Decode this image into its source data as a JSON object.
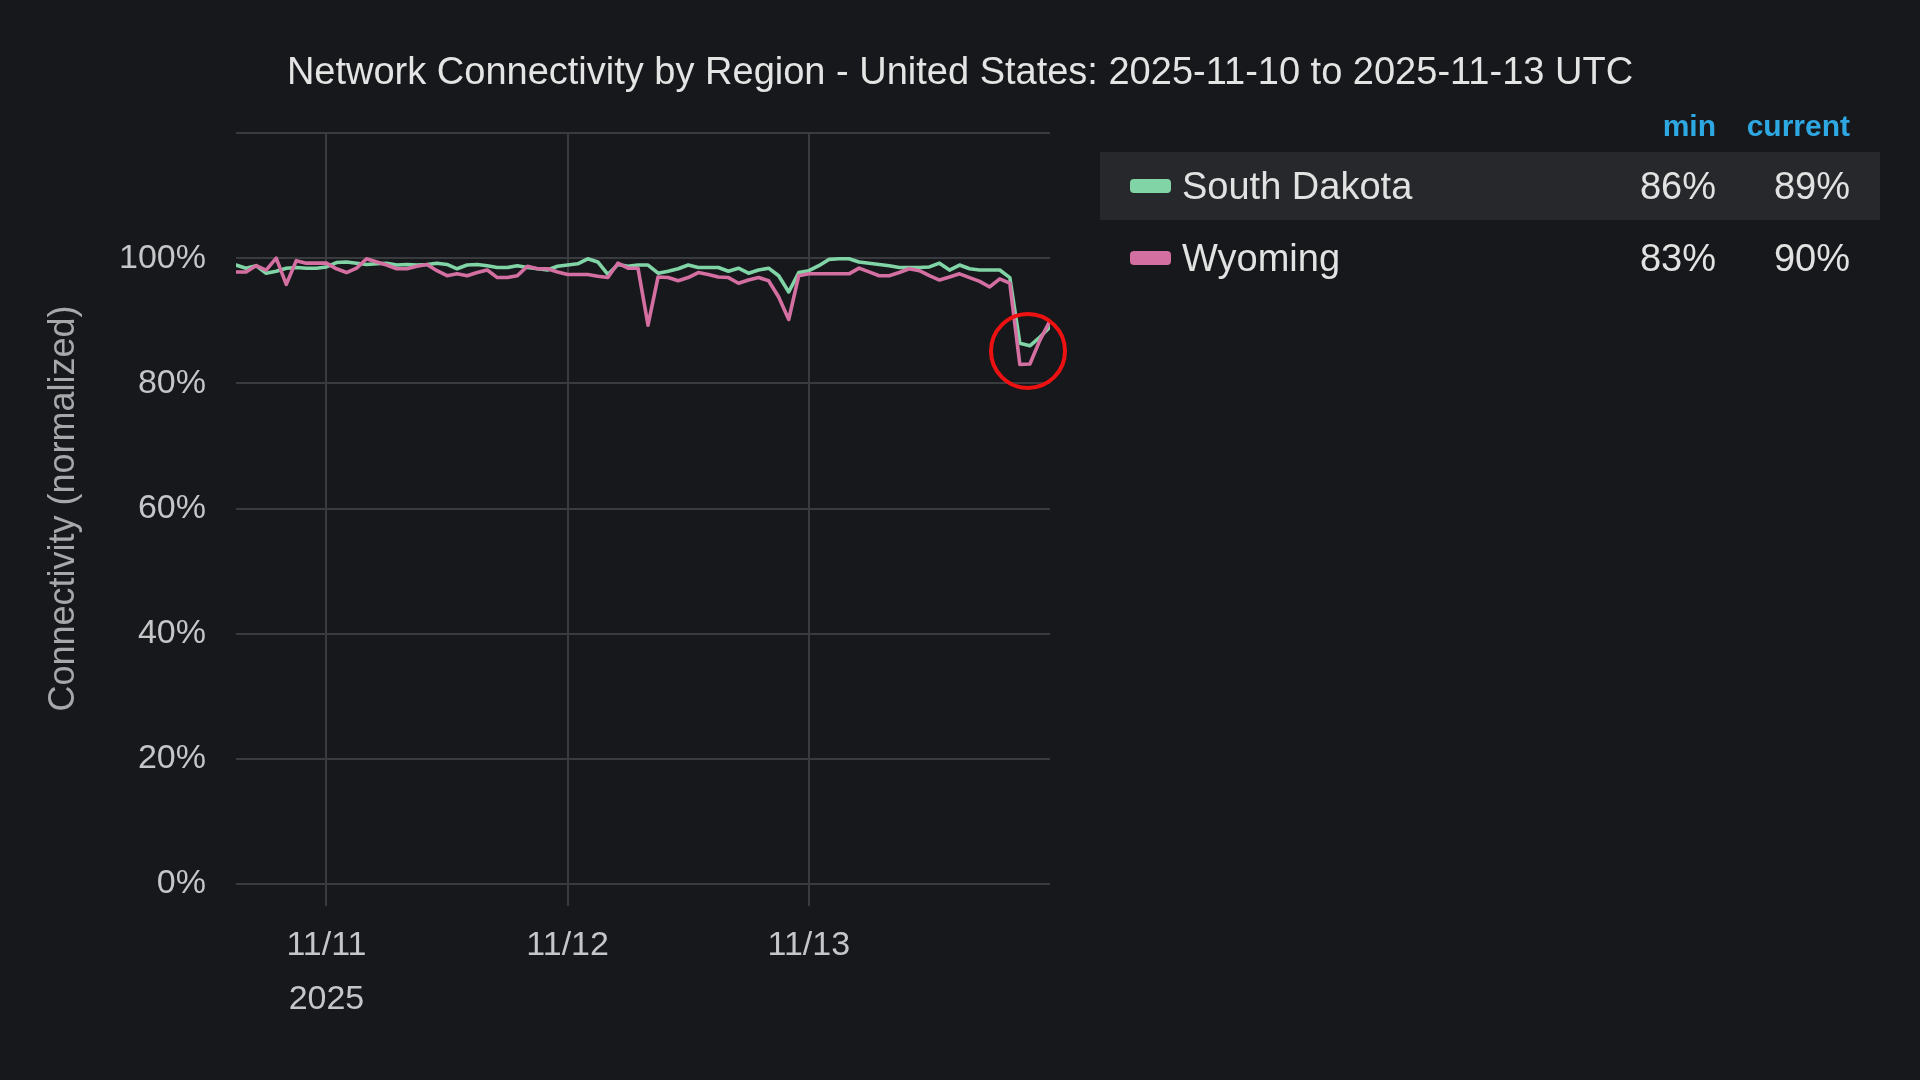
{
  "chart_data": {
    "type": "line",
    "title": "Network Connectivity by Region - United States: 2025-11-10 to 2025-11-13 UTC",
    "ylabel": "Connectivity (normalized)",
    "x": [
      "2025-11-10T15:00",
      "2025-11-10T16:00",
      "2025-11-10T17:00",
      "2025-11-10T18:00",
      "2025-11-10T19:00",
      "2025-11-10T20:00",
      "2025-11-10T21:00",
      "2025-11-10T22:00",
      "2025-11-10T23:00",
      "2025-11-11T00:00",
      "2025-11-11T01:00",
      "2025-11-11T02:00",
      "2025-11-11T03:00",
      "2025-11-11T04:00",
      "2025-11-11T05:00",
      "2025-11-11T06:00",
      "2025-11-11T07:00",
      "2025-11-11T08:00",
      "2025-11-11T09:00",
      "2025-11-11T10:00",
      "2025-11-11T11:00",
      "2025-11-11T12:00",
      "2025-11-11T13:00",
      "2025-11-11T14:00",
      "2025-11-11T15:00",
      "2025-11-11T16:00",
      "2025-11-11T17:00",
      "2025-11-11T18:00",
      "2025-11-11T19:00",
      "2025-11-11T20:00",
      "2025-11-11T21:00",
      "2025-11-11T22:00",
      "2025-11-11T23:00",
      "2025-11-12T00:00",
      "2025-11-12T01:00",
      "2025-11-12T02:00",
      "2025-11-12T03:00",
      "2025-11-12T04:00",
      "2025-11-12T05:00",
      "2025-11-12T06:00",
      "2025-11-12T07:00",
      "2025-11-12T08:00",
      "2025-11-12T09:00",
      "2025-11-12T10:00",
      "2025-11-12T11:00",
      "2025-11-12T12:00",
      "2025-11-12T13:00",
      "2025-11-12T14:00",
      "2025-11-12T15:00",
      "2025-11-12T16:00",
      "2025-11-12T17:00",
      "2025-11-12T18:00",
      "2025-11-12T19:00",
      "2025-11-12T20:00",
      "2025-11-12T21:00",
      "2025-11-12T22:00",
      "2025-11-12T23:00",
      "2025-11-13T00:00",
      "2025-11-13T01:00",
      "2025-11-13T02:00",
      "2025-11-13T03:00",
      "2025-11-13T04:00",
      "2025-11-13T05:00",
      "2025-11-13T06:00",
      "2025-11-13T07:00",
      "2025-11-13T08:00",
      "2025-11-13T09:00",
      "2025-11-13T10:00",
      "2025-11-13T11:00",
      "2025-11-13T12:00",
      "2025-11-13T13:00",
      "2025-11-13T14:00",
      "2025-11-13T15:00",
      "2025-11-13T16:00",
      "2025-11-13T17:00",
      "2025-11-13T18:00",
      "2025-11-13T19:00",
      "2025-11-13T20:00",
      "2025-11-13T21:00",
      "2025-11-13T22:00",
      "2025-11-13T23:00",
      "2025-11-14T00:00"
    ],
    "series": [
      {
        "name": "South Dakota",
        "color": "#80d4a6",
        "values": [
          98.9,
          98.4,
          98.8,
          97.6,
          97.9,
          98.4,
          98.5,
          98.4,
          98.4,
          98.6,
          99.3,
          99.4,
          99.2,
          99.0,
          99.1,
          99.2,
          98.9,
          99.0,
          98.9,
          99.0,
          99.2,
          99.0,
          98.3,
          98.9,
          99.0,
          98.8,
          98.5,
          98.5,
          98.8,
          98.5,
          98.3,
          98.1,
          98.7,
          98.9,
          99.1,
          99.9,
          99.4,
          97.4,
          99.0,
          98.7,
          98.9,
          98.9,
          97.6,
          97.9,
          98.3,
          98.9,
          98.5,
          98.5,
          98.5,
          97.9,
          98.4,
          97.6,
          98.1,
          98.4,
          97.2,
          94.6,
          97.7,
          98.0,
          98.8,
          99.8,
          99.9,
          99.9,
          99.4,
          99.2,
          99.0,
          98.8,
          98.5,
          98.5,
          98.5,
          98.6,
          99.2,
          98.1,
          98.9,
          98.3,
          98.1,
          98.1,
          98.1,
          96.9,
          86.4,
          86.0,
          87.4,
          89.0
        ]
      },
      {
        "name": "Wyoming",
        "color": "#d36fa1",
        "values": [
          97.8,
          97.8,
          98.8,
          98.1,
          100.0,
          95.8,
          99.6,
          99.2,
          99.2,
          99.2,
          98.3,
          97.7,
          98.4,
          99.9,
          99.4,
          98.9,
          98.3,
          98.3,
          98.7,
          99.0,
          98.0,
          97.2,
          97.5,
          97.2,
          97.7,
          98.1,
          96.9,
          96.9,
          97.2,
          98.7,
          98.3,
          98.3,
          97.8,
          97.4,
          97.4,
          97.4,
          97.1,
          96.9,
          99.2,
          98.4,
          98.4,
          89.3,
          97.0,
          96.9,
          96.4,
          96.9,
          97.7,
          97.4,
          97.0,
          96.9,
          96.0,
          96.5,
          96.9,
          96.4,
          93.8,
          90.2,
          97.2,
          97.5,
          97.5,
          97.5,
          97.5,
          97.5,
          98.4,
          97.8,
          97.2,
          97.2,
          97.7,
          98.3,
          98.0,
          97.2,
          96.5,
          97.0,
          97.5,
          96.9,
          96.3,
          95.4,
          96.7,
          96.0,
          83.0,
          83.1,
          86.9,
          90.0
        ]
      }
    ],
    "xlim": [
      "2025-11-10T15:00",
      "2025-11-14T00:00"
    ],
    "xticks": [
      {
        "value": "2025-11-11",
        "label": "11/11\n2025"
      },
      {
        "value": "2025-11-12",
        "label": "11/12"
      },
      {
        "value": "2025-11-13",
        "label": "11/13"
      }
    ],
    "ylim": [
      0,
      120
    ],
    "yticks": [
      {
        "value": 0,
        "label": "0%"
      },
      {
        "value": 20,
        "label": "20%"
      },
      {
        "value": 40,
        "label": "40%"
      },
      {
        "value": 60,
        "label": "60%"
      },
      {
        "value": 80,
        "label": "80%"
      },
      {
        "value": 100,
        "label": "100%"
      },
      {
        "value": 120,
        "label": null
      }
    ],
    "grid": true,
    "legend": "right",
    "annotations": [
      "min",
      "current",
      "86%",
      "89%",
      "83%",
      "90%"
    ]
  }
}
